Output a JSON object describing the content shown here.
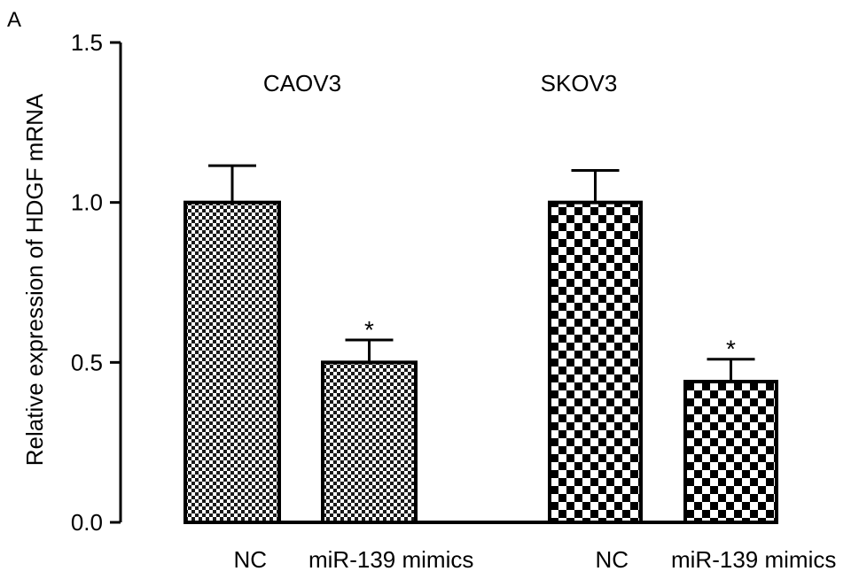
{
  "panel_label": "A",
  "chart_data": {
    "type": "bar",
    "ylabel": "Relative expression of HDGF mRNA",
    "ylim": [
      0,
      1.5
    ],
    "yticks": [
      "0.0",
      "0.5",
      "1.0",
      "1.5"
    ],
    "groups": [
      {
        "name": "CAOV3",
        "bars": [
          {
            "label": "NC",
            "value": 1.0,
            "error": 0.115,
            "pattern": "fine",
            "significance": ""
          },
          {
            "label": "miR-139 mimics",
            "value": 0.5,
            "error": 0.07,
            "pattern": "fine",
            "significance": "*"
          }
        ]
      },
      {
        "name": "SKOV3",
        "bars": [
          {
            "label": "NC",
            "value": 1.0,
            "error": 0.1,
            "pattern": "coarse",
            "significance": ""
          },
          {
            "label": "miR-139 mimics",
            "value": 0.44,
            "error": 0.07,
            "pattern": "coarse",
            "significance": "*"
          }
        ]
      }
    ],
    "grid": false,
    "legend": "none"
  }
}
